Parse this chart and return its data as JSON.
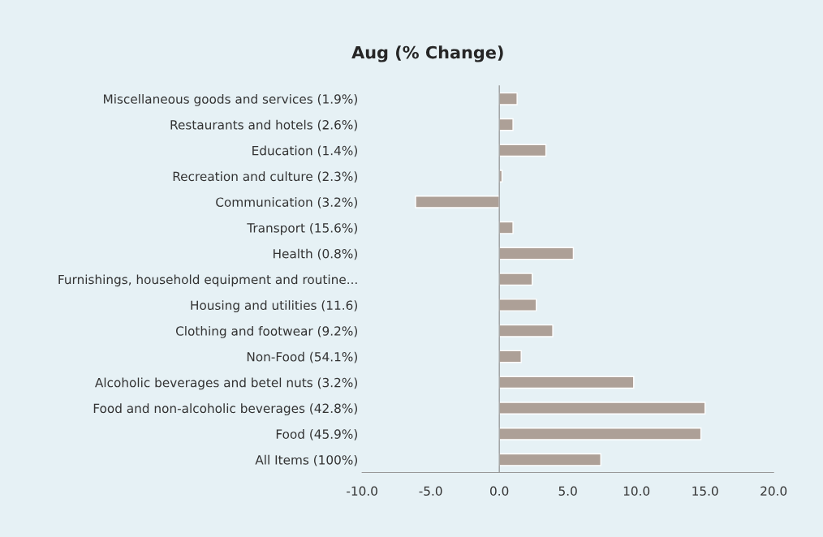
{
  "chart_data": {
    "type": "bar",
    "orientation": "horizontal",
    "title": "Aug (% Change)",
    "categories": [
      "Miscellaneous goods and services (1.9%)",
      "Restaurants and hotels (2.6%)",
      "Education (1.4%)",
      "Recreation and culture (2.3%)",
      "Communication (3.2%)",
      "Transport (15.6%)",
      "Health (0.8%)",
      "Furnishings, household equipment and routine...",
      "Housing and utilities (11.6)",
      "Clothing and footwear (9.2%)",
      "Non-Food (54.1%)",
      "Alcoholic beverages and betel nuts (3.2%)",
      "Food and non-alcoholic beverages (42.8%)",
      "Food (45.9%)",
      "All Items (100%)"
    ],
    "values": [
      1.3,
      1.0,
      3.4,
      0.2,
      -6.1,
      1.0,
      5.4,
      2.4,
      2.7,
      3.9,
      1.6,
      9.8,
      15.0,
      14.7,
      7.4
    ],
    "color": "#ada097",
    "xlim": [
      -10,
      20
    ],
    "xticks": [
      {
        "value": -10,
        "label": "-10.0"
      },
      {
        "value": -5,
        "label": "-5.0"
      },
      {
        "value": 0,
        "label": "0.0"
      },
      {
        "value": 5,
        "label": "5.0"
      },
      {
        "value": 10,
        "label": "10.0"
      },
      {
        "value": 15,
        "label": "15.0"
      },
      {
        "value": 20,
        "label": "20.0"
      }
    ],
    "legend": false
  }
}
